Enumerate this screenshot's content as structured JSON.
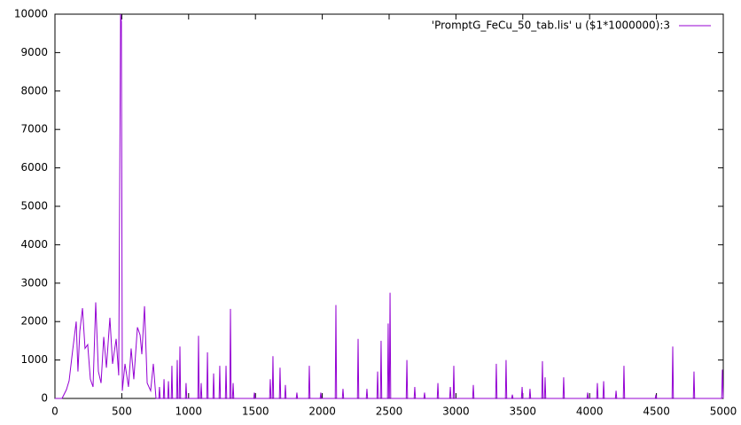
{
  "chart_data": {
    "type": "line",
    "series": [
      {
        "name": "'PromptG_FeCu_50_tab.lis' u ($1*1000000):3",
        "color": "#9400d3",
        "x": [
          0,
          53,
          86,
          106,
          133,
          159,
          172,
          186,
          206,
          225,
          245,
          265,
          285,
          305,
          325,
          345,
          365,
          385,
          411,
          431,
          458,
          477,
          491,
          497,
          504,
          524,
          550,
          570,
          590,
          617,
          637,
          650,
          670,
          690,
          716,
          736,
          756,
          777,
          782,
          787,
          811,
          816,
          821,
          844,
          849,
          854,
          870,
          875,
          880,
          910,
          915,
          920,
          930,
          935,
          940,
          976,
          981,
          986,
          1069,
          1074,
          1079,
          1089,
          1094,
          1099,
          1136,
          1141,
          1146,
          1182,
          1187,
          1192,
          1228,
          1233,
          1238,
          1275,
          1280,
          1285,
          1308,
          1313,
          1318,
          1328,
          1333,
          1338,
          1487,
          1492,
          1497,
          1606,
          1611,
          1616,
          1626,
          1631,
          1636,
          1679,
          1684,
          1689,
          1719,
          1724,
          1729,
          1805,
          1810,
          1815,
          1898,
          1903,
          1908,
          1984,
          1989,
          1994,
          2097,
          2102,
          2107,
          2150,
          2155,
          2160,
          2263,
          2268,
          2273,
          2329,
          2334,
          2339,
          2409,
          2414,
          2419,
          2435,
          2440,
          2445,
          2488,
          2493,
          2498,
          2502,
          2507,
          2512,
          2628,
          2633,
          2638,
          2687,
          2692,
          2697,
          2760,
          2765,
          2770,
          2860,
          2865,
          2870,
          2953,
          2958,
          2963,
          2979,
          2984,
          2989,
          3125,
          3130,
          3135,
          3297,
          3302,
          3307,
          3370,
          3375,
          3380,
          3417,
          3422,
          3427,
          3490,
          3495,
          3500,
          3549,
          3554,
          3559,
          3642,
          3647,
          3652,
          3662,
          3667,
          3672,
          3801,
          3806,
          3811,
          3980,
          3985,
          3990,
          4053,
          4058,
          4063,
          4100,
          4105,
          4110,
          4193,
          4198,
          4203,
          4252,
          4257,
          4262,
          4491,
          4496,
          4501,
          4617,
          4622,
          4627,
          4776,
          4781,
          4786,
          4988,
          4993,
          5000
        ],
        "values": [
          0,
          0,
          230,
          460,
          1270,
          2000,
          700,
          1750,
          2350,
          1300,
          1400,
          500,
          300,
          2500,
          700,
          400,
          1600,
          800,
          2100,
          900,
          1550,
          600,
          10000,
          9800,
          200,
          900,
          300,
          1300,
          500,
          1850,
          1650,
          1150,
          2400,
          400,
          200,
          900,
          0,
          0,
          300,
          0,
          0,
          500,
          0,
          0,
          450,
          0,
          0,
          850,
          0,
          0,
          1000,
          0,
          0,
          1350,
          0,
          0,
          400,
          0,
          0,
          1630,
          0,
          0,
          400,
          0,
          0,
          1200,
          0,
          0,
          650,
          0,
          0,
          850,
          0,
          0,
          850,
          0,
          0,
          2330,
          0,
          0,
          400,
          0,
          0,
          150,
          0,
          0,
          500,
          0,
          0,
          1100,
          0,
          0,
          800,
          0,
          0,
          350,
          0,
          0,
          150,
          0,
          0,
          850,
          0,
          0,
          150,
          0,
          0,
          2430,
          0,
          0,
          250,
          0,
          0,
          1550,
          0,
          0,
          250,
          0,
          0,
          700,
          0,
          0,
          1500,
          0,
          0,
          1950,
          0,
          0,
          2750,
          0,
          0,
          1000,
          0,
          0,
          300,
          0,
          0,
          150,
          0,
          0,
          400,
          0,
          0,
          300,
          0,
          0,
          850,
          0,
          0,
          350,
          0,
          0,
          900,
          0,
          0,
          1000,
          0,
          0,
          100,
          0,
          0,
          300,
          0,
          0,
          250,
          0,
          0,
          970,
          0,
          0,
          550,
          0,
          0,
          550,
          0,
          0,
          150,
          0,
          0,
          400,
          0,
          0,
          450,
          0,
          0,
          200,
          0,
          0,
          850,
          0,
          0,
          100,
          0,
          0,
          1350,
          0,
          0,
          700,
          0,
          0,
          750,
          0
        ]
      }
    ],
    "xlim": [
      0,
      5000
    ],
    "xticks": [
      0,
      500,
      1000,
      1500,
      2000,
      2500,
      3000,
      3500,
      4000,
      4500,
      5000
    ],
    "ylim": [
      0,
      10000
    ],
    "yticks": [
      0,
      1000,
      2000,
      3000,
      4000,
      5000,
      6000,
      7000,
      8000,
      9000,
      10000
    ],
    "grid": false,
    "legend": "top-right"
  }
}
